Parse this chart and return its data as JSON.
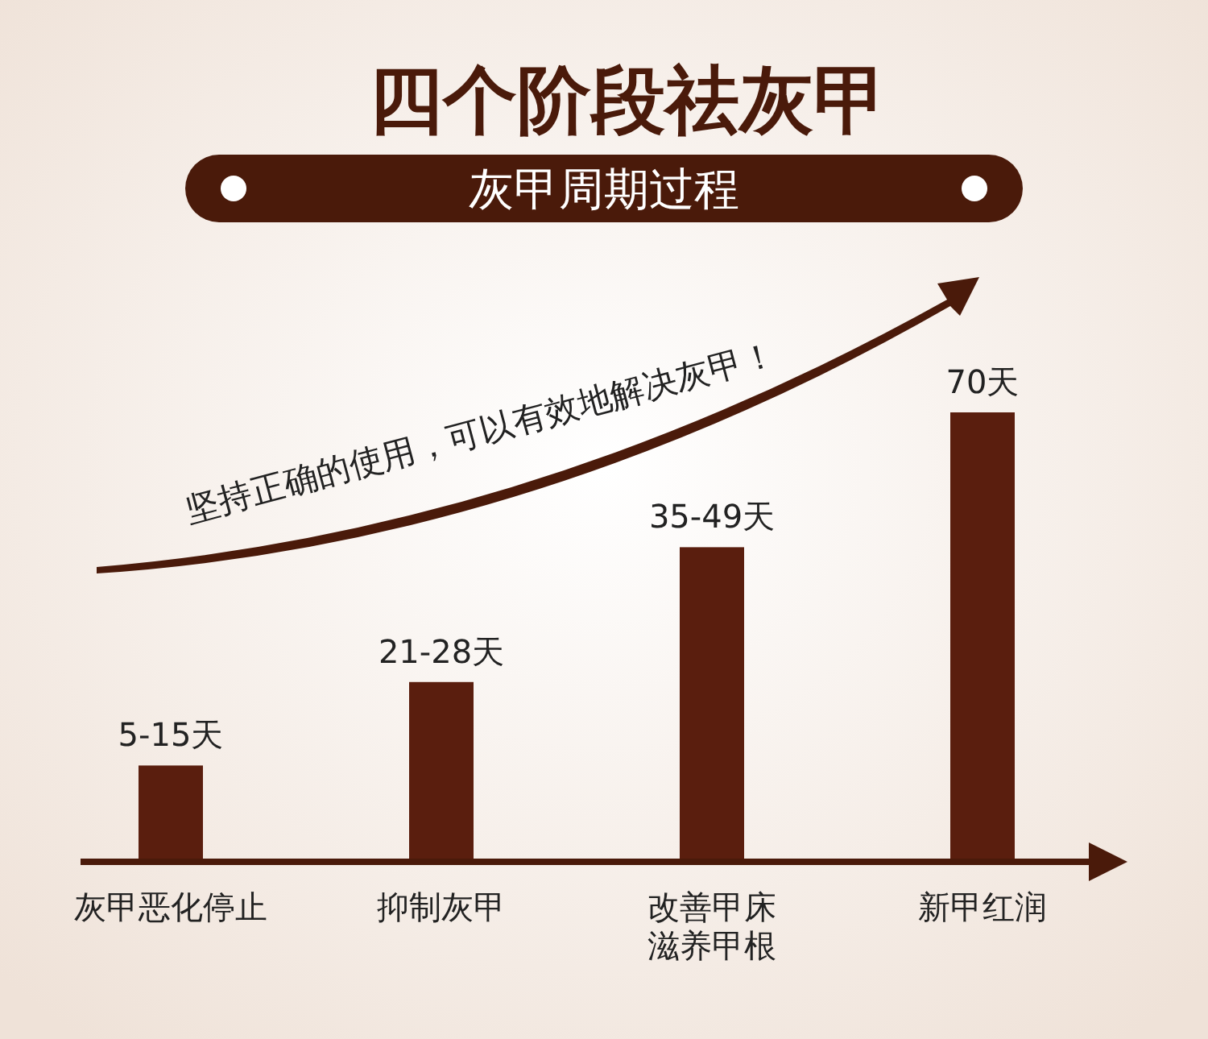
{
  "chart_data": {
    "type": "bar",
    "title": "四个阶段祛灰甲",
    "subtitle": "灰甲周期过程",
    "categories": [
      "灰甲恶化停止",
      "抑制灰甲",
      "改善甲床滋养甲根",
      "新甲红润"
    ],
    "values": [
      15,
      28,
      49,
      70
    ],
    "value_labels": [
      "5-15天",
      "21-28天",
      "35-49天",
      "70天"
    ],
    "color": "#5a1e0e",
    "annotations": [
      "坚持正确的使用，可以有效地解决灰甲！"
    ]
  }
}
